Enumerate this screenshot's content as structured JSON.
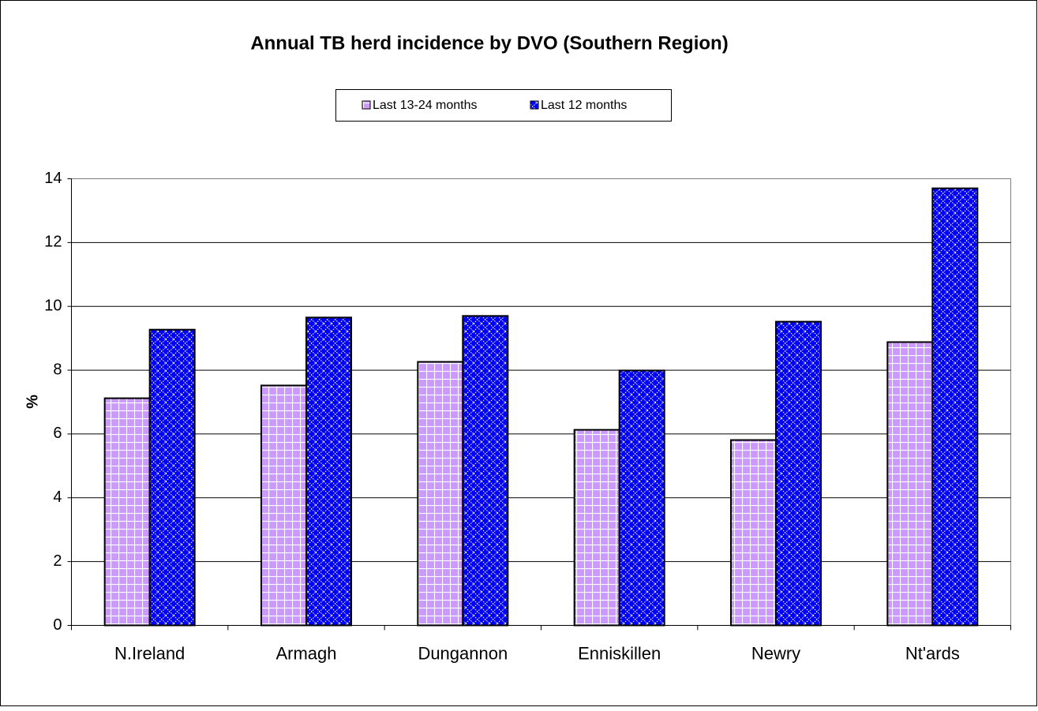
{
  "chart_data": {
    "type": "bar",
    "title": "Annual TB herd incidence by DVO (Southern Region)",
    "y_label": "%",
    "categories": [
      "N.Ireland",
      "Armagh",
      "Dungannon",
      "Enniskillen",
      "Newry",
      "Nt'ards"
    ],
    "series": [
      {
        "name": "Last 13-24 months",
        "color": "#cc99ff",
        "values": [
          7.12,
          7.52,
          8.26,
          6.13,
          5.81,
          8.88
        ]
      },
      {
        "name": "Last 12 months",
        "color": "#0000ff",
        "values": [
          9.27,
          9.65,
          9.7,
          7.99,
          9.52,
          13.7
        ]
      }
    ],
    "ylim": [
      0,
      14
    ],
    "yticks": [
      0,
      2,
      4,
      6,
      8,
      10,
      12,
      14
    ],
    "grid": true
  }
}
